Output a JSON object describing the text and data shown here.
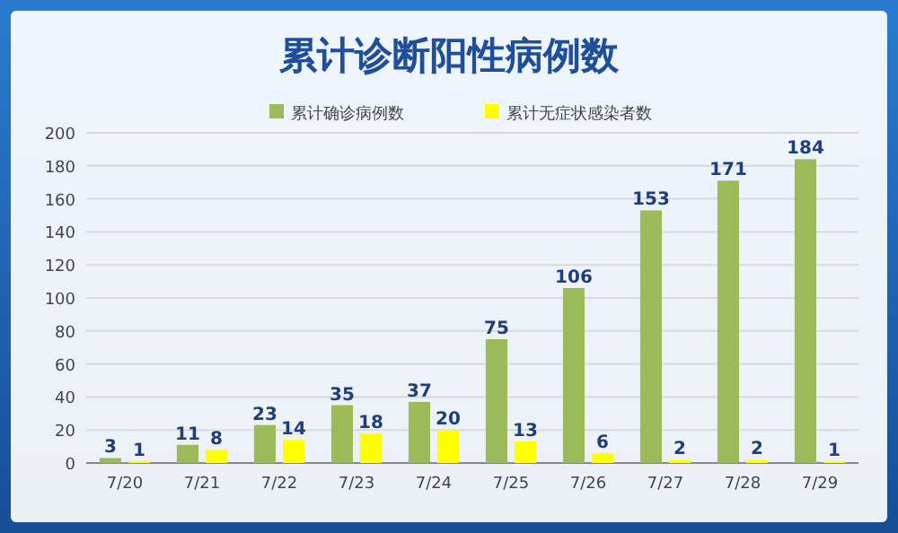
{
  "chart_data": {
    "type": "bar",
    "title": "累计诊断阳性病例数",
    "categories": [
      "7/20",
      "7/21",
      "7/22",
      "7/23",
      "7/24",
      "7/25",
      "7/26",
      "7/27",
      "7/28",
      "7/29"
    ],
    "series": [
      {
        "name": "累计确诊病例数",
        "color": "#9bbb59",
        "values": [
          3,
          11,
          23,
          35,
          37,
          75,
          106,
          153,
          171,
          184
        ]
      },
      {
        "name": "累计无症状感染者数",
        "color": "#ffff00",
        "values": [
          1,
          8,
          14,
          18,
          20,
          13,
          6,
          2,
          2,
          1
        ]
      }
    ],
    "ylim": [
      0,
      200
    ],
    "yticks": [
      0,
      20,
      40,
      60,
      80,
      100,
      120,
      140,
      160,
      180,
      200
    ],
    "grid": "y",
    "legend": "top",
    "data_labels": true
  }
}
